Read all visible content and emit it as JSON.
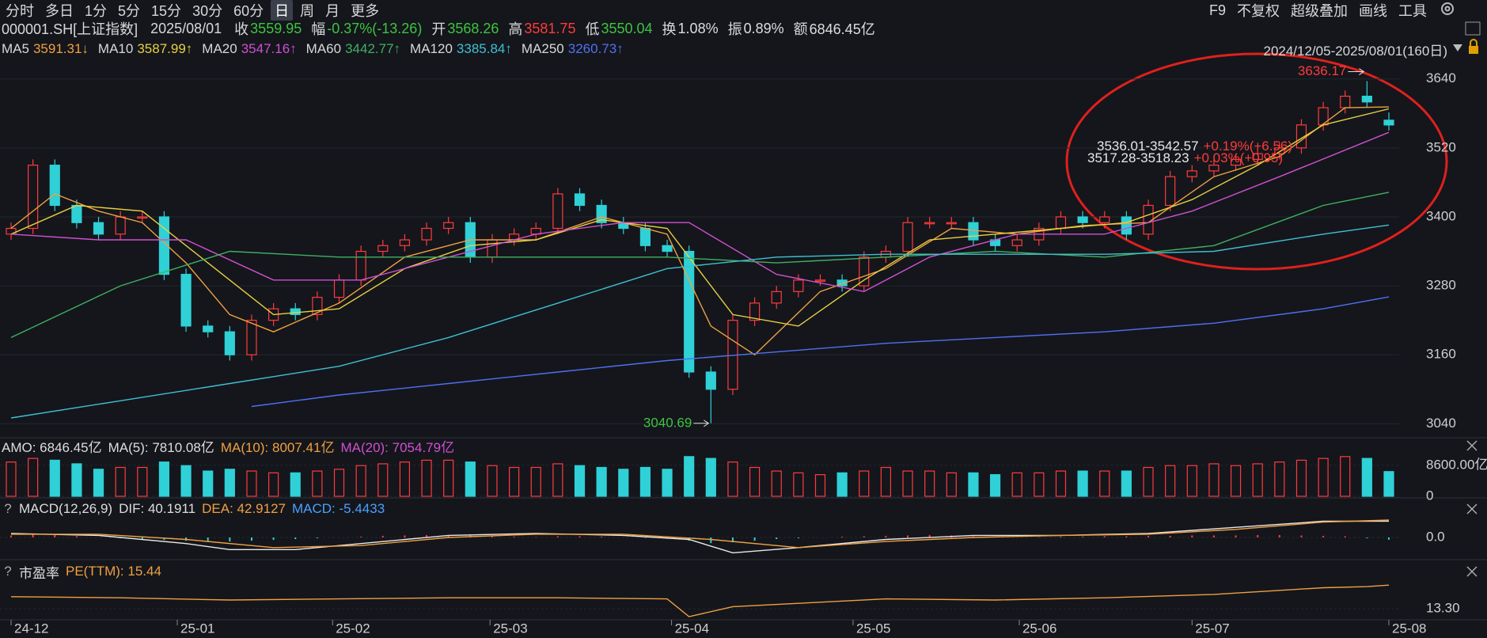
{
  "toolbar": {
    "tabs": [
      "分时",
      "多日",
      "1分",
      "5分",
      "15分",
      "30分",
      "60分",
      "日",
      "周",
      "月",
      "更多"
    ],
    "active": "日",
    "tools": [
      "F9",
      "不复权",
      "超级叠加",
      "画线",
      "工具"
    ]
  },
  "quote": {
    "symbol": "000001.SH[上证指数]",
    "date": "2025/08/01",
    "fields": [
      {
        "label": "收",
        "value": 3559.95,
        "color": "#3ec43e"
      },
      {
        "label": "幅",
        "value": "-0.37%(-13.26)",
        "color": "#3ec43e"
      },
      {
        "label": "开",
        "value": 3568.26,
        "color": "#3ec43e"
      },
      {
        "label": "高",
        "value": 3581.75,
        "color": "#ff3b3b"
      },
      {
        "label": "低",
        "value": 3550.04,
        "color": "#3ec43e"
      },
      {
        "label": "换",
        "value": "1.08%",
        "color": "#dddddd"
      },
      {
        "label": "振",
        "value": "0.89%",
        "color": "#dddddd"
      },
      {
        "label": "额",
        "value": "6846.45亿",
        "color": "#dddddd"
      }
    ]
  },
  "range_label": "2024/12/05-2025/08/01(160日)",
  "overlays": [
    {
      "range": "3536.01-3542.57",
      "change": "+0.19%(+6.56)"
    },
    {
      "range": "3517.28-3518.23",
      "change": "+0.03%(+0.95)"
    }
  ],
  "chart_data": [
    {
      "type": "candlestick",
      "xlim": [
        0,
        63
      ],
      "ylim": [
        3017,
        3681
      ],
      "yticks": [
        3040,
        3160,
        3280,
        3400,
        3520,
        3640
      ],
      "grid": true,
      "up_color": "#ff3b3b",
      "down_color": "#2fd0d6",
      "high_label": 3636.17,
      "low_label": 3040.69,
      "xticks": [
        {
          "value": 0,
          "label": "24-12"
        },
        {
          "value": 7.6,
          "label": "25-01"
        },
        {
          "value": 14.7,
          "label": "25-02"
        },
        {
          "value": 21.9,
          "label": "25-03"
        },
        {
          "value": 30.2,
          "label": "25-04"
        },
        {
          "value": 38.5,
          "label": "25-05"
        },
        {
          "value": 46.1,
          "label": "25-06"
        },
        {
          "value": 54,
          "label": "25-07"
        },
        {
          "value": 63,
          "label": "25-08"
        }
      ],
      "candles": {
        "open": [
          3370,
          3380,
          3490,
          3420,
          3390,
          3370,
          3400,
          3400,
          3300,
          3210,
          3200,
          3160,
          3220,
          3240,
          3230,
          3260,
          3290,
          3340,
          3350,
          3360,
          3380,
          3390,
          3330,
          3360,
          3370,
          3380,
          3440,
          3420,
          3390,
          3380,
          3350,
          3340,
          3130,
          3100,
          3220,
          3250,
          3270,
          3290,
          3290,
          3280,
          3330,
          3340,
          3390,
          3390,
          3390,
          3360,
          3350,
          3360,
          3380,
          3400,
          3390,
          3400,
          3370,
          3420,
          3470,
          3480,
          3490,
          3500,
          3510,
          3520,
          3560,
          3590,
          3610,
          3568.26
        ],
        "high": [
          3390,
          3500,
          3500,
          3430,
          3400,
          3410,
          3410,
          3410,
          3310,
          3220,
          3210,
          3230,
          3250,
          3250,
          3270,
          3300,
          3350,
          3360,
          3370,
          3390,
          3400,
          3400,
          3370,
          3380,
          3390,
          3450,
          3450,
          3430,
          3400,
          3390,
          3360,
          3350,
          3140,
          3230,
          3260,
          3280,
          3300,
          3300,
          3300,
          3340,
          3350,
          3400,
          3400,
          3400,
          3400,
          3370,
          3370,
          3390,
          3410,
          3410,
          3410,
          3410,
          3430,
          3480,
          3490,
          3500,
          3510,
          3520,
          3530,
          3570,
          3600,
          3620,
          3636.17,
          3581.75
        ],
        "low": [
          3360,
          3370,
          3410,
          3380,
          3360,
          3360,
          3390,
          3290,
          3200,
          3190,
          3150,
          3150,
          3210,
          3220,
          3220,
          3250,
          3280,
          3330,
          3340,
          3350,
          3370,
          3320,
          3320,
          3350,
          3360,
          3370,
          3410,
          3380,
          3370,
          3340,
          3330,
          3120,
          3040.69,
          3090,
          3210,
          3240,
          3260,
          3280,
          3270,
          3270,
          3320,
          3330,
          3380,
          3380,
          3350,
          3340,
          3340,
          3350,
          3370,
          3380,
          3380,
          3360,
          3360,
          3410,
          3460,
          3470,
          3480,
          3490,
          3500,
          3510,
          3550,
          3580,
          3590,
          3550.04
        ],
        "close": [
          3380,
          3490,
          3420,
          3390,
          3370,
          3400,
          3400,
          3300,
          3210,
          3200,
          3160,
          3220,
          3240,
          3230,
          3260,
          3290,
          3340,
          3350,
          3360,
          3380,
          3390,
          3330,
          3360,
          3370,
          3380,
          3440,
          3420,
          3390,
          3380,
          3350,
          3340,
          3130,
          3100,
          3220,
          3250,
          3270,
          3290,
          3290,
          3280,
          3330,
          3340,
          3390,
          3390,
          3390,
          3360,
          3350,
          3360,
          3380,
          3400,
          3390,
          3400,
          3370,
          3420,
          3470,
          3480,
          3490,
          3500,
          3510,
          3520,
          3560,
          3590,
          3610,
          3600,
          3559.95
        ]
      },
      "series": [
        {
          "name": "MA5",
          "value": 3591.31,
          "arrow": "↓",
          "color": "#f0a040",
          "x": [
            0,
            2,
            4,
            6,
            8,
            10,
            12,
            15,
            18,
            21,
            24,
            27,
            30,
            32,
            34,
            37,
            40,
            43,
            46,
            49,
            52,
            55,
            58,
            61,
            63
          ],
          "values": [
            3380,
            3440,
            3410,
            3390,
            3320,
            3230,
            3200,
            3250,
            3330,
            3360,
            3360,
            3400,
            3370,
            3210,
            3160,
            3270,
            3310,
            3380,
            3370,
            3385,
            3390,
            3470,
            3505,
            3590,
            3591.31
          ]
        },
        {
          "name": "MA10",
          "value": 3587.99,
          "arrow": "↑",
          "color": "#e8d040",
          "x": [
            0,
            3,
            6,
            9,
            12,
            15,
            18,
            21,
            24,
            27,
            30,
            33,
            36,
            39,
            42,
            45,
            48,
            51,
            54,
            57,
            60,
            63
          ],
          "values": [
            3370,
            3420,
            3410,
            3320,
            3230,
            3240,
            3310,
            3350,
            3360,
            3395,
            3380,
            3230,
            3210,
            3290,
            3360,
            3370,
            3380,
            3390,
            3430,
            3490,
            3560,
            3587.99
          ]
        },
        {
          "name": "MA20",
          "value": 3547.16,
          "arrow": "↑",
          "color": "#d050d0",
          "x": [
            0,
            4,
            8,
            12,
            16,
            20,
            24,
            28,
            31,
            35,
            39,
            42,
            46,
            50,
            54,
            58,
            63
          ],
          "values": [
            3370,
            3360,
            3360,
            3290,
            3290,
            3330,
            3370,
            3390,
            3390,
            3300,
            3270,
            3330,
            3370,
            3370,
            3410,
            3470,
            3547.16
          ]
        },
        {
          "name": "MA60",
          "value": 3442.77,
          "arrow": "↑",
          "color": "#40b060",
          "x": [
            0,
            5,
            10,
            15,
            20,
            25,
            30,
            35,
            40,
            45,
            50,
            55,
            60,
            63
          ],
          "values": [
            3190,
            3280,
            3340,
            3330,
            3330,
            3330,
            3330,
            3320,
            3330,
            3340,
            3330,
            3350,
            3420,
            3442.77
          ]
        },
        {
          "name": "MA120",
          "value": 3385.84,
          "arrow": "↑",
          "color": "#40c0d0",
          "x": [
            0,
            5,
            10,
            15,
            20,
            25,
            30,
            35,
            40,
            45,
            50,
            55,
            60,
            63
          ],
          "values": [
            3050,
            3080,
            3110,
            3140,
            3190,
            3250,
            3310,
            3330,
            3335,
            3335,
            3335,
            3340,
            3370,
            3385.84
          ]
        },
        {
          "name": "MA250",
          "value": 3260.73,
          "arrow": "↑",
          "color": "#5070f0",
          "x": [
            11,
            15,
            20,
            25,
            30,
            35,
            40,
            45,
            50,
            55,
            60,
            63
          ],
          "values": [
            3070,
            3090,
            3110,
            3130,
            3150,
            3165,
            3180,
            3190,
            3200,
            3215,
            3240,
            3260.73
          ]
        }
      ]
    },
    {
      "type": "bar",
      "header": [
        {
          "text": "AMO: 6846.45亿",
          "color": "#dddddd"
        },
        {
          "text": "MA(5): 7810.08亿",
          "color": "#dddddd"
        },
        {
          "text": "MA(10): 8007.41亿",
          "color": "#f0a040"
        },
        {
          "text": "MA(20): 7054.79亿",
          "color": "#d050d0"
        }
      ],
      "ylim": [
        0,
        11400
      ],
      "yticks": [
        {
          "value": 8600,
          "label": "8600.00亿"
        },
        0
      ],
      "values": [
        9500,
        10500,
        10000,
        9000,
        7500,
        8000,
        8000,
        9500,
        8500,
        7000,
        7500,
        7000,
        6500,
        6500,
        7000,
        7500,
        8500,
        9000,
        9500,
        10000,
        10000,
        9500,
        8500,
        8000,
        8000,
        9000,
        8500,
        8000,
        7500,
        8000,
        7500,
        11000,
        10500,
        9500,
        8000,
        7000,
        6500,
        6000,
        6500,
        7000,
        8000,
        7000,
        7000,
        6500,
        6500,
        6000,
        6500,
        6500,
        7000,
        7000,
        7000,
        7000,
        8000,
        8500,
        8500,
        9000,
        8500,
        9000,
        9500,
        10000,
        10500,
        11000,
        10500,
        6846.45
      ]
    },
    {
      "type": "macd",
      "help": "?",
      "header": [
        {
          "text": "MACD(12,26,9)",
          "color": "#dddddd"
        },
        {
          "text": "DIF: 40.1911",
          "color": "#dddddd"
        },
        {
          "text": "DEA: 42.9127",
          "color": "#f0a040"
        },
        {
          "text": "MACD: -5.4433",
          "color": "#4aa0ff"
        }
      ],
      "ylim": [
        -45,
        43
      ],
      "yticks": [
        {
          "value": 0,
          "label": "0.0"
        }
      ],
      "values": [
        5,
        8,
        6,
        3,
        0,
        -2,
        -4,
        -6,
        -8,
        -10,
        -10,
        -8,
        -6,
        -4,
        -2,
        0,
        2,
        4,
        5,
        6,
        6,
        5,
        4,
        2,
        1,
        3,
        3,
        2,
        0,
        -1,
        -2,
        -8,
        -14,
        -12,
        -8,
        -4,
        -2,
        0,
        2,
        3,
        4,
        5,
        6,
        5,
        3,
        1,
        0,
        1,
        2,
        2,
        3,
        3,
        4,
        4,
        5,
        5,
        5,
        6,
        6,
        5,
        4,
        3,
        -2,
        -5.4433
      ],
      "series": [
        {
          "name": "DIF",
          "color": "#e8e8e8",
          "x": [
            0,
            4,
            8,
            10,
            13,
            16,
            20,
            24,
            28,
            31,
            33,
            36,
            40,
            44,
            48,
            52,
            56,
            60,
            63
          ],
          "values": [
            10,
            5,
            -15,
            -30,
            -30,
            -15,
            5,
            10,
            5,
            -5,
            -38,
            -25,
            -5,
            5,
            5,
            10,
            25,
            40,
            40.1911
          ]
        },
        {
          "name": "DEA",
          "color": "#f0a040",
          "x": [
            0,
            4,
            8,
            12,
            16,
            20,
            24,
            28,
            32,
            36,
            40,
            44,
            48,
            52,
            56,
            60,
            63
          ],
          "values": [
            8,
            8,
            -5,
            -25,
            -20,
            0,
            8,
            8,
            -5,
            -25,
            -10,
            0,
            5,
            8,
            20,
            38,
            42.9127
          ]
        }
      ]
    },
    {
      "type": "line",
      "help": "?",
      "header": [
        {
          "text": "市盈率",
          "color": "#dddddd"
        },
        {
          "text": "PE(TTM): 15.44",
          "color": "#f0a040"
        }
      ],
      "ylim": [
        12.53,
        15.95
      ],
      "yticks": [
        {
          "value": 13.3,
          "label": "13.30"
        }
      ],
      "series": [
        {
          "name": "PE(TTM)",
          "color": "#f0a040",
          "x": [
            0,
            5,
            10,
            15,
            20,
            25,
            30,
            31,
            33,
            36,
            40,
            45,
            50,
            55,
            60,
            62,
            63
          ],
          "values": [
            14.4,
            14.3,
            14.1,
            14.2,
            14.3,
            14.3,
            14.2,
            12.6,
            13.5,
            13.8,
            14.2,
            14.1,
            14.3,
            14.6,
            15.2,
            15.3,
            15.44
          ]
        }
      ]
    }
  ]
}
